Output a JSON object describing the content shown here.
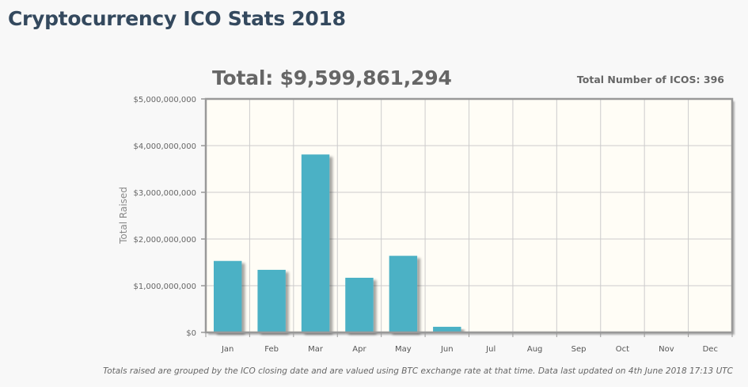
{
  "page": {
    "title": "Cryptocurrency ICO Stats 2018",
    "total_label": "Total: $9,599,861,294",
    "count_label": "Total Number of ICOS: 396",
    "footnote": "Totals raised are grouped by the ICO closing date and are valued using BTC exchange rate at that time. Data last updated on 4th June 2018 17:13 UTC"
  },
  "colors": {
    "bar": "#4bb1c5",
    "plot_background": "#fffdf6",
    "grid": "#cccccc",
    "axis": "#999999"
  },
  "chart_data": {
    "type": "bar",
    "title": "Total: $9,599,861,294",
    "xlabel": "",
    "ylabel": "Total Raised",
    "categories": [
      "Jan",
      "Feb",
      "Mar",
      "Apr",
      "May",
      "Jun",
      "Jul",
      "Aug",
      "Sep",
      "Oct",
      "Nov",
      "Dec"
    ],
    "values": [
      1530000000,
      1340000000,
      3810000000,
      1170000000,
      1640000000,
      120000000,
      0,
      0,
      0,
      0,
      0,
      0
    ],
    "ylim": [
      0,
      5000000000
    ],
    "yticks": [
      0,
      1000000000,
      2000000000,
      3000000000,
      4000000000,
      5000000000
    ],
    "ytick_labels": [
      "$0",
      "$1,000,000,000",
      "$2,000,000,000",
      "$3,000,000,000",
      "$4,000,000,000",
      "$5,000,000,000"
    ],
    "grid": true,
    "legend": "none"
  }
}
